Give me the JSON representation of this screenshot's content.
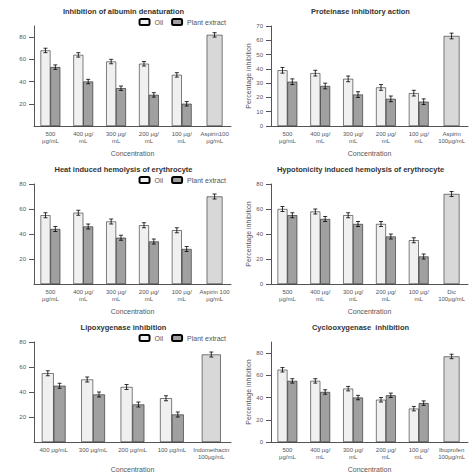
{
  "chart_data": [
    {
      "type": "bar",
      "title": "Inhibition of albumin denaturation",
      "xlabel": "Concentration",
      "categories": [
        "500\nμg/mL",
        "400 μg/mL",
        "300 μg/mL",
        "200 μg/mL",
        "100 μg/mL",
        "Aspirin100μg/mL"
      ],
      "ylim": [
        0,
        90
      ],
      "yticks": [
        20,
        40,
        60,
        80
      ],
      "grid": false,
      "legend": "upper right",
      "series": [
        {
          "name": "Oil",
          "color": "#f0f0f0",
          "values": [
            68,
            64,
            58,
            56,
            46,
            null
          ],
          "errors": [
            2,
            2,
            2,
            2,
            2,
            null
          ]
        },
        {
          "name": "Plant extract",
          "color": "#a0a0a0",
          "values": [
            53,
            40,
            34,
            28,
            20,
            null
          ],
          "errors": [
            2,
            2,
            2,
            2,
            2,
            null
          ]
        },
        {
          "color": "#d8d8d8",
          "values": [
            null,
            null,
            null,
            null,
            null,
            82
          ],
          "errors": [
            null,
            null,
            null,
            null,
            null,
            2
          ]
        }
      ]
    },
    {
      "type": "bar",
      "title": "Proteinase inhibitory action",
      "xlabel": "Concentration",
      "ylabel": "Percentage inhibition",
      "categories": [
        "500\nμg/mL",
        "400 μg/mL",
        "300 μg/mL",
        "200 μg/mL",
        "100 μg/mL",
        "Aspirin\n100μg/mL"
      ],
      "ylim": [
        0,
        70
      ],
      "yticks": [
        0,
        10,
        20,
        30,
        40,
        50,
        60,
        70
      ],
      "grid": false,
      "series": [
        {
          "name": "Oil",
          "color": "#f0f0f0",
          "values": [
            39,
            37,
            33,
            27,
            23,
            null
          ],
          "errors": [
            2,
            2,
            2,
            2,
            2,
            null
          ]
        },
        {
          "name": "Plant extract",
          "color": "#a0a0a0",
          "values": [
            31,
            28,
            22,
            19,
            17,
            null
          ],
          "errors": [
            2,
            2,
            2,
            2,
            2,
            null
          ]
        },
        {
          "color": "#d8d8d8",
          "values": [
            null,
            null,
            null,
            null,
            null,
            63
          ],
          "errors": [
            null,
            null,
            null,
            null,
            null,
            2
          ]
        }
      ]
    },
    {
      "type": "bar",
      "title": "Heat induced hemolysis of erythrocyte",
      "xlabel": "Concentration",
      "categories": [
        "500\nμg/mL",
        "400 μg/mL",
        "300 μg/mL",
        "200 μg/mL",
        "100 μg/mL",
        "Aspirin 100\nμg/mL"
      ],
      "ylim": [
        0,
        80
      ],
      "yticks": [
        20,
        40,
        60,
        80
      ],
      "grid": false,
      "legend": "upper right",
      "series": [
        {
          "name": "Oil",
          "color": "#f0f0f0",
          "values": [
            55,
            57,
            50,
            47,
            43,
            null
          ],
          "errors": [
            2,
            2,
            2,
            2,
            2,
            null
          ]
        },
        {
          "name": "Plant extract",
          "color": "#a0a0a0",
          "values": [
            44,
            46,
            37,
            34,
            28,
            null
          ],
          "errors": [
            2,
            2,
            2,
            2,
            2,
            null
          ]
        },
        {
          "color": "#d8d8d8",
          "values": [
            null,
            null,
            null,
            null,
            null,
            70
          ],
          "errors": [
            null,
            null,
            null,
            null,
            null,
            2
          ]
        }
      ]
    },
    {
      "type": "bar",
      "title": "Hypotonicity induced hemolysis of erythrocyte",
      "xlabel": "Concentration",
      "ylabel": "Percentage inhibition",
      "categories": [
        "500\nμg/mL",
        "400 μg/mL",
        "300 μg/mL",
        "200 μg/mL",
        "100 μg/mL",
        "Dic\n100μg/mL"
      ],
      "ylim": [
        0,
        80
      ],
      "yticks": [
        0,
        20,
        40,
        60,
        80
      ],
      "grid": false,
      "series": [
        {
          "name": "Oil",
          "color": "#f0f0f0",
          "values": [
            60,
            58,
            55,
            48,
            35,
            null
          ],
          "errors": [
            2,
            2,
            2,
            2,
            2,
            null
          ]
        },
        {
          "name": "Plant extract",
          "color": "#a0a0a0",
          "values": [
            55,
            52,
            48,
            38,
            22,
            null
          ],
          "errors": [
            2,
            2,
            2,
            2,
            2,
            null
          ]
        },
        {
          "color": "#d8d8d8",
          "values": [
            null,
            null,
            null,
            null,
            null,
            72
          ],
          "errors": [
            null,
            null,
            null,
            null,
            null,
            2
          ]
        }
      ]
    },
    {
      "type": "bar",
      "title": "Lipoxygenase inhibition",
      "xlabel": "Concentration",
      "categories": [
        "400 μg/mL",
        "300 μg/mL",
        "200 μg/mL",
        "100 μg/mL",
        "Indomethacin\n100μg/mL"
      ],
      "ylim": [
        0,
        80
      ],
      "yticks": [
        20,
        40,
        60,
        80
      ],
      "grid": false,
      "legend": "upper right",
      "series": [
        {
          "name": "Oil",
          "color": "#f0f0f0",
          "values": [
            55,
            50,
            44,
            35,
            null
          ],
          "errors": [
            2,
            2,
            2,
            2,
            null
          ]
        },
        {
          "name": "Plant extract",
          "color": "#a0a0a0",
          "values": [
            45,
            38,
            30,
            22,
            null
          ],
          "errors": [
            2,
            2,
            2,
            2,
            null
          ]
        },
        {
          "color": "#d8d8d8",
          "values": [
            null,
            null,
            null,
            null,
            70
          ],
          "errors": [
            null,
            null,
            null,
            null,
            2
          ]
        }
      ]
    },
    {
      "type": "bar",
      "title": "Cyclooxygenase  inhibition",
      "xlabel": "Concentration",
      "ylabel": "Percentage inhibition",
      "categories": [
        "500\nμg/mL",
        "400 μg/mL",
        "300 μg/mL",
        "200 μg/mL",
        "100 μg/mL",
        "Ibuprofen\n100μg/mL"
      ],
      "ylim": [
        0,
        90
      ],
      "yticks": [
        0,
        20,
        40,
        60,
        80
      ],
      "grid": false,
      "series": [
        {
          "name": "Oil",
          "color": "#f0f0f0",
          "values": [
            65,
            55,
            48,
            38,
            30,
            null
          ],
          "errors": [
            2,
            2,
            2,
            2,
            2,
            null
          ]
        },
        {
          "name": "Plant extract",
          "color": "#a0a0a0",
          "values": [
            55,
            45,
            40,
            42,
            35,
            null
          ],
          "errors": [
            2,
            2,
            2,
            2,
            2,
            null
          ]
        },
        {
          "color": "#d8d8d8",
          "values": [
            null,
            null,
            null,
            null,
            null,
            77
          ],
          "errors": [
            null,
            null,
            null,
            null,
            null,
            2
          ]
        }
      ]
    }
  ]
}
